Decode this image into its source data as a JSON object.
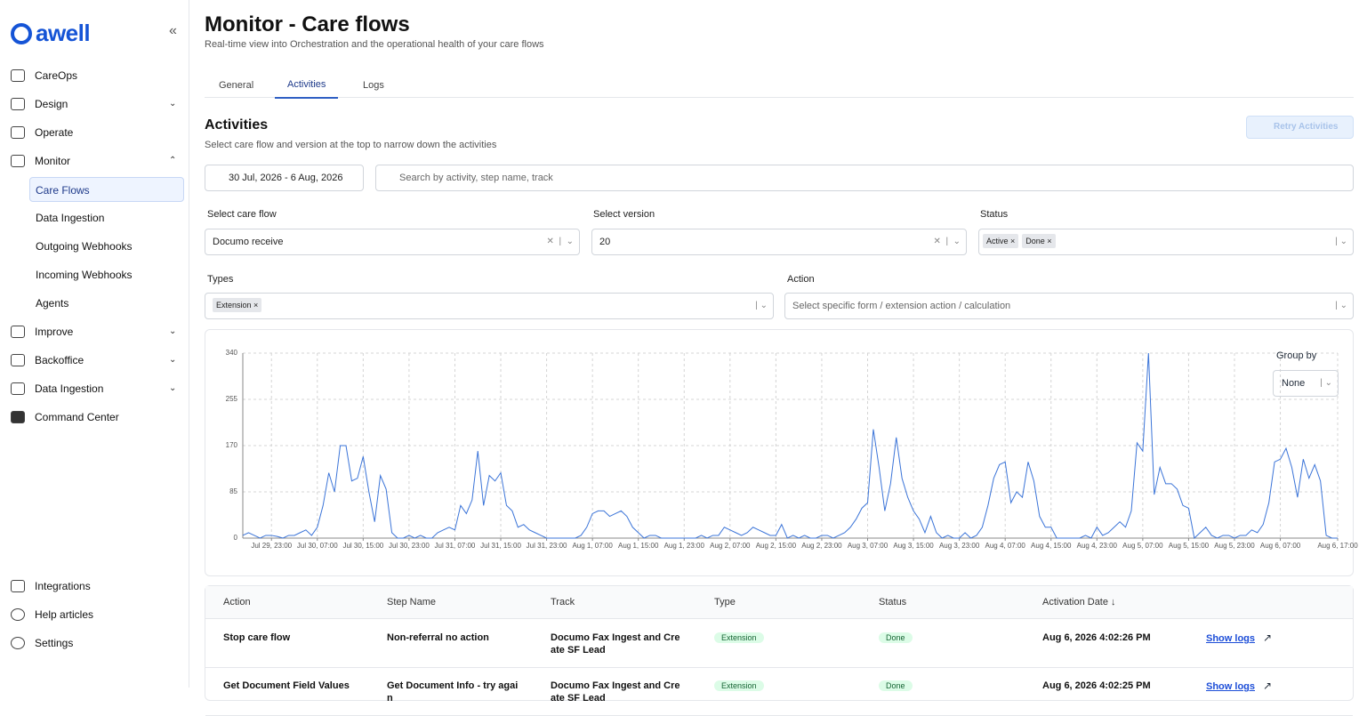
{
  "sidebar": {
    "logo": "awell",
    "nav": [
      "CareOps",
      "Design",
      "Operate",
      "Monitor"
    ],
    "monitor_items": [
      "Care Flows",
      "Data Ingestion",
      "Outgoing Webhooks",
      "Incoming Webhooks",
      "Agents"
    ],
    "nav2": [
      "Improve",
      "Backoffice",
      "Data Ingestion",
      "Command Center"
    ],
    "bottom": [
      "Integrations",
      "Help articles",
      "Settings"
    ]
  },
  "header": {
    "title": "Monitor - Care flows",
    "subtitle": "Real-time view into Orchestration and the operational health of your care flows",
    "tabs": [
      "General",
      "Activities",
      "Logs"
    ]
  },
  "section": {
    "title": "Activities",
    "subtitle": "Select care flow and version at the top to narrow down the activities",
    "button": "Retry Activities"
  },
  "filters": {
    "date_range": "30 Jul, 2026 - 6 Aug, 2026",
    "search_placeholder": "Search by activity, step name, track",
    "care_flow_label": "Select care flow",
    "care_flow": "Documo receive",
    "version_label": "Select version",
    "version": "20",
    "status_label": "Status",
    "statuses": [
      "Active",
      "Done"
    ],
    "types_label": "Types",
    "types": [
      "Extension"
    ],
    "action_label": "Action",
    "action_placeholder": "Select specific form / extension action / calculation"
  },
  "chart_data": {
    "type": "line",
    "group_by_label": "Group by",
    "group_by": "None",
    "color": "#3b74d8",
    "grid": true,
    "x": [
      "Jul 29, 18:00",
      "Jul 29, 19:00",
      "Jul 29, 20:00",
      "Jul 29, 21:00",
      "Jul 29, 22:00",
      "Jul 29, 23:00",
      "Jul 30, 00:00",
      "Jul 30, 01:00",
      "Jul 30, 02:00",
      "Jul 30, 03:00",
      "Jul 30, 04:00",
      "Jul 30, 05:00",
      "Jul 30, 06:00",
      "Jul 30, 07:00",
      "Jul 30, 08:00",
      "Jul 30, 09:00",
      "Jul 30, 10:00",
      "Jul 30, 11:00",
      "Jul 30, 12:00",
      "Jul 30, 13:00",
      "Jul 30, 14:00",
      "Jul 30, 15:00",
      "Jul 30, 16:00",
      "Jul 30, 17:00",
      "Jul 30, 18:00",
      "Jul 30, 19:00",
      "Jul 30, 20:00",
      "Jul 30, 21:00",
      "Jul 30, 22:00",
      "Jul 30, 23:00",
      "Jul 31, 00:00",
      "Jul 31, 01:00",
      "Jul 31, 02:00",
      "Jul 31, 03:00",
      "Jul 31, 04:00",
      "Jul 31, 05:00",
      "Jul 31, 06:00",
      "Jul 31, 07:00",
      "Jul 31, 08:00",
      "Jul 31, 09:00",
      "Jul 31, 10:00",
      "Jul 31, 11:00",
      "Jul 31, 12:00",
      "Jul 31, 13:00",
      "Jul 31, 14:00",
      "Jul 31, 15:00",
      "Jul 31, 16:00",
      "Jul 31, 17:00",
      "Jul 31, 18:00",
      "Jul 31, 19:00",
      "Jul 31, 20:00",
      "Jul 31, 21:00",
      "Jul 31, 22:00",
      "Jul 31, 23:00",
      "Aug 1, 00:00",
      "Aug 1, 01:00",
      "Aug 1, 02:00",
      "Aug 1, 03:00",
      "Aug 1, 04:00",
      "Aug 1, 05:00",
      "Aug 1, 06:00",
      "Aug 1, 07:00",
      "Aug 1, 08:00",
      "Aug 1, 09:00",
      "Aug 1, 10:00",
      "Aug 1, 11:00",
      "Aug 1, 12:00",
      "Aug 1, 13:00",
      "Aug 1, 14:00",
      "Aug 1, 15:00",
      "Aug 1, 16:00",
      "Aug 1, 17:00",
      "Aug 1, 18:00",
      "Aug 1, 19:00",
      "Aug 1, 20:00",
      "Aug 1, 21:00",
      "Aug 1, 22:00",
      "Aug 1, 23:00",
      "Aug 2, 00:00",
      "Aug 2, 01:00",
      "Aug 2, 02:00",
      "Aug 2, 03:00",
      "Aug 2, 04:00",
      "Aug 2, 05:00",
      "Aug 2, 06:00",
      "Aug 2, 07:00",
      "Aug 2, 08:00",
      "Aug 2, 09:00",
      "Aug 2, 10:00",
      "Aug 2, 11:00",
      "Aug 2, 12:00",
      "Aug 2, 13:00",
      "Aug 2, 14:00",
      "Aug 2, 15:00",
      "Aug 2, 16:00",
      "Aug 2, 17:00",
      "Aug 2, 18:00",
      "Aug 2, 19:00",
      "Aug 2, 20:00",
      "Aug 2, 21:00",
      "Aug 2, 22:00",
      "Aug 2, 23:00",
      "Aug 3, 00:00",
      "Aug 3, 01:00",
      "Aug 3, 02:00",
      "Aug 3, 03:00",
      "Aug 3, 04:00",
      "Aug 3, 05:00",
      "Aug 3, 06:00",
      "Aug 3, 07:00",
      "Aug 3, 08:00",
      "Aug 3, 09:00",
      "Aug 3, 10:00",
      "Aug 3, 11:00",
      "Aug 3, 12:00",
      "Aug 3, 13:00",
      "Aug 3, 14:00",
      "Aug 3, 15:00",
      "Aug 3, 16:00",
      "Aug 3, 17:00",
      "Aug 3, 18:00",
      "Aug 3, 19:00",
      "Aug 3, 20:00",
      "Aug 3, 21:00",
      "Aug 3, 22:00",
      "Aug 3, 23:00",
      "Aug 4, 00:00",
      "Aug 4, 01:00",
      "Aug 4, 02:00",
      "Aug 4, 03:00",
      "Aug 4, 04:00",
      "Aug 4, 05:00",
      "Aug 4, 06:00",
      "Aug 4, 07:00",
      "Aug 4, 08:00",
      "Aug 4, 09:00",
      "Aug 4, 10:00",
      "Aug 4, 11:00",
      "Aug 4, 12:00",
      "Aug 4, 13:00",
      "Aug 4, 14:00",
      "Aug 4, 15:00",
      "Aug 4, 16:00",
      "Aug 4, 17:00",
      "Aug 4, 18:00",
      "Aug 4, 19:00",
      "Aug 4, 20:00",
      "Aug 4, 21:00",
      "Aug 4, 22:00",
      "Aug 4, 23:00",
      "Aug 5, 00:00",
      "Aug 5, 01:00",
      "Aug 5, 02:00",
      "Aug 5, 03:00",
      "Aug 5, 04:00",
      "Aug 5, 05:00",
      "Aug 5, 06:00",
      "Aug 5, 07:00",
      "Aug 5, 08:00",
      "Aug 5, 09:00",
      "Aug 5, 10:00",
      "Aug 5, 11:00",
      "Aug 5, 12:00",
      "Aug 5, 13:00",
      "Aug 5, 14:00",
      "Aug 5, 15:00",
      "Aug 5, 16:00",
      "Aug 5, 17:00",
      "Aug 5, 18:00",
      "Aug 5, 19:00",
      "Aug 5, 20:00",
      "Aug 5, 21:00",
      "Aug 5, 22:00",
      "Aug 5, 23:00",
      "Aug 6, 00:00",
      "Aug 6, 01:00",
      "Aug 6, 02:00",
      "Aug 6, 03:00",
      "Aug 6, 04:00",
      "Aug 6, 05:00",
      "Aug 6, 06:00",
      "Aug 6, 07:00",
      "Aug 6, 08:00",
      "Aug 6, 09:00",
      "Aug 6, 10:00",
      "Aug 6, 11:00",
      "Aug 6, 12:00",
      "Aug 6, 13:00",
      "Aug 6, 14:00",
      "Aug 6, 15:00",
      "Aug 6, 16:00",
      "Aug 6, 17:00"
    ],
    "values": [
      5,
      10,
      5,
      0,
      5,
      5,
      3,
      0,
      5,
      5,
      10,
      15,
      5,
      20,
      60,
      120,
      85,
      170,
      170,
      105,
      110,
      150,
      85,
      30,
      115,
      90,
      10,
      0,
      0,
      5,
      0,
      5,
      0,
      0,
      10,
      15,
      20,
      15,
      60,
      45,
      70,
      160,
      60,
      115,
      105,
      120,
      60,
      50,
      20,
      25,
      15,
      10,
      5,
      0,
      0,
      0,
      0,
      0,
      0,
      5,
      20,
      45,
      50,
      50,
      40,
      45,
      50,
      40,
      20,
      10,
      0,
      5,
      5,
      0,
      0,
      0,
      0,
      0,
      0,
      0,
      5,
      0,
      5,
      5,
      20,
      15,
      10,
      5,
      10,
      20,
      15,
      10,
      5,
      5,
      25,
      0,
      5,
      0,
      5,
      0,
      0,
      5,
      5,
      0,
      5,
      10,
      20,
      35,
      55,
      65,
      200,
      130,
      50,
      100,
      185,
      110,
      75,
      50,
      35,
      10,
      40,
      10,
      0,
      5,
      0,
      0,
      10,
      0,
      5,
      20,
      60,
      110,
      135,
      140,
      65,
      85,
      75,
      140,
      105,
      40,
      20,
      20,
      0,
      0,
      0,
      0,
      0,
      5,
      0,
      20,
      5,
      10,
      20,
      30,
      20,
      50,
      175,
      160,
      340,
      80,
      130,
      100,
      100,
      90,
      60,
      55,
      0,
      10,
      20,
      5,
      0,
      5,
      5,
      0,
      5,
      5,
      15,
      10,
      25,
      65,
      140,
      145,
      165,
      130,
      75,
      145,
      110,
      135,
      105,
      5,
      0,
      0
    ],
    "xticks": [
      "Jul 29, 23:00",
      "Jul 30, 07:00",
      "Jul 30, 15:00",
      "Jul 30, 23:00",
      "Jul 31, 07:00",
      "Jul 31, 15:00",
      "Jul 31, 23:00",
      "Aug 1, 07:00",
      "Aug 1, 15:00",
      "Aug 1, 23:00",
      "Aug 2, 07:00",
      "Aug 2, 15:00",
      "Aug 2, 23:00",
      "Aug 3, 07:00",
      "Aug 3, 15:00",
      "Aug 3, 23:00",
      "Aug 4, 07:00",
      "Aug 4, 15:00",
      "Aug 4, 23:00",
      "Aug 5, 07:00",
      "Aug 5, 15:00",
      "Aug 5, 23:00",
      "Aug 6, 07:00",
      "Aug 6, 17:00"
    ],
    "ylim": [
      0,
      340
    ],
    "yticks": [
      0,
      85,
      170,
      255,
      340
    ]
  },
  "table": {
    "columns": [
      "Action",
      "Step Name",
      "Track",
      "Type",
      "Status",
      "Activation Date"
    ],
    "link": "Show logs",
    "rows": [
      [
        "Stop care flow",
        "Non-referral no action",
        "Documo Fax Ingest and Create SF Lead",
        "Extension",
        "Done",
        "Aug 6, 2026 4:02:26 PM"
      ],
      [
        "Get Document Field Values",
        "Get Document Info - try again",
        "Documo Fax Ingest and Create SF Lead",
        "Extension",
        "Done",
        "Aug 6, 2026 4:02:25 PM"
      ]
    ]
  }
}
